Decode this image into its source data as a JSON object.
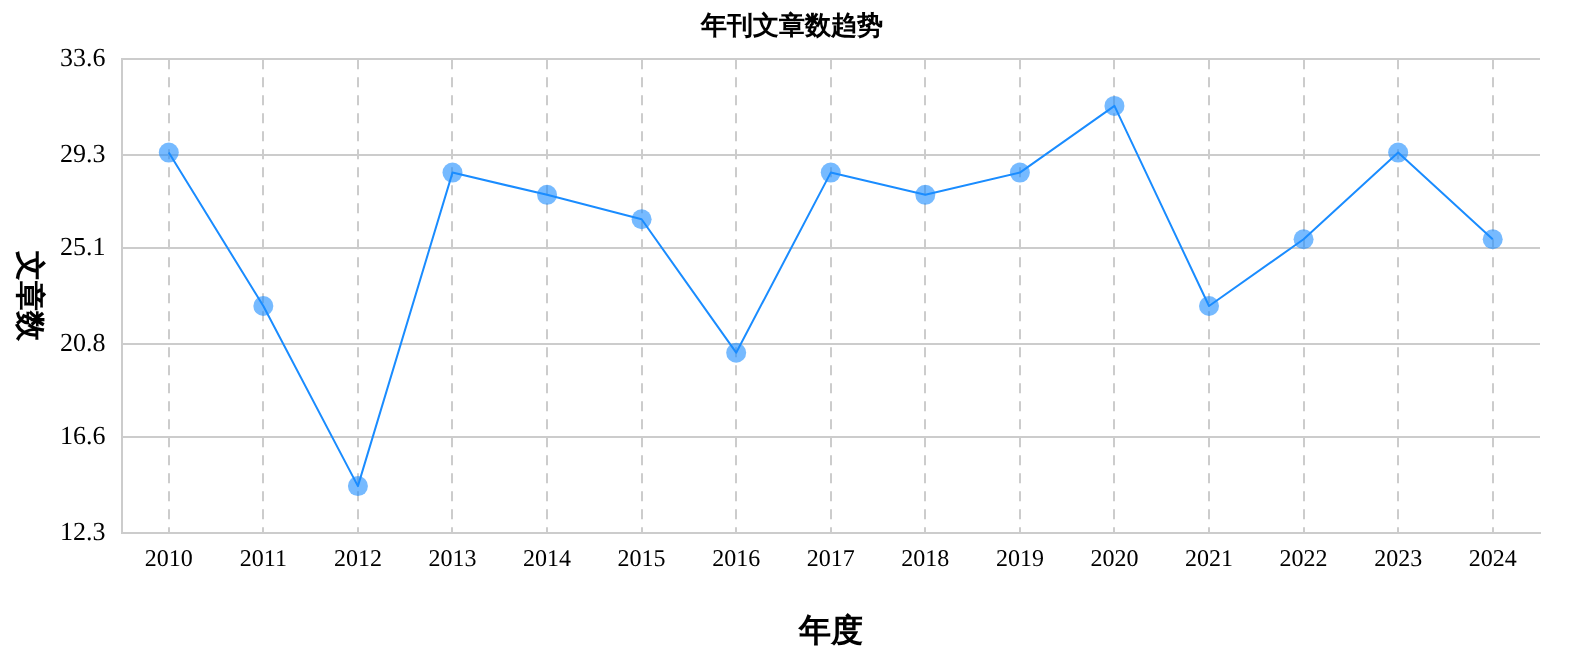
{
  "chart_data": {
    "type": "line",
    "title": "年刊文章数趋势",
    "xlabel": "年度",
    "ylabel": "文章数",
    "categories": [
      "2010",
      "2011",
      "2012",
      "2013",
      "2014",
      "2015",
      "2016",
      "2017",
      "2018",
      "2019",
      "2020",
      "2021",
      "2022",
      "2023",
      "2024"
    ],
    "series": [
      {
        "color": "#1a8cff",
        "values": [
          29.4,
          22.5,
          14.4,
          28.5,
          27.5,
          26.4,
          20.4,
          28.5,
          27.5,
          28.5,
          31.5,
          22.5,
          25.5,
          29.4,
          25.5
        ]
      }
    ],
    "ylim": [
      12.3,
      33.6
    ],
    "yticks": [
      12.3,
      16.6,
      20.8,
      25.1,
      29.3,
      33.6
    ],
    "grid": true,
    "marker": "circle",
    "line_style": "solid",
    "legend": false
  }
}
